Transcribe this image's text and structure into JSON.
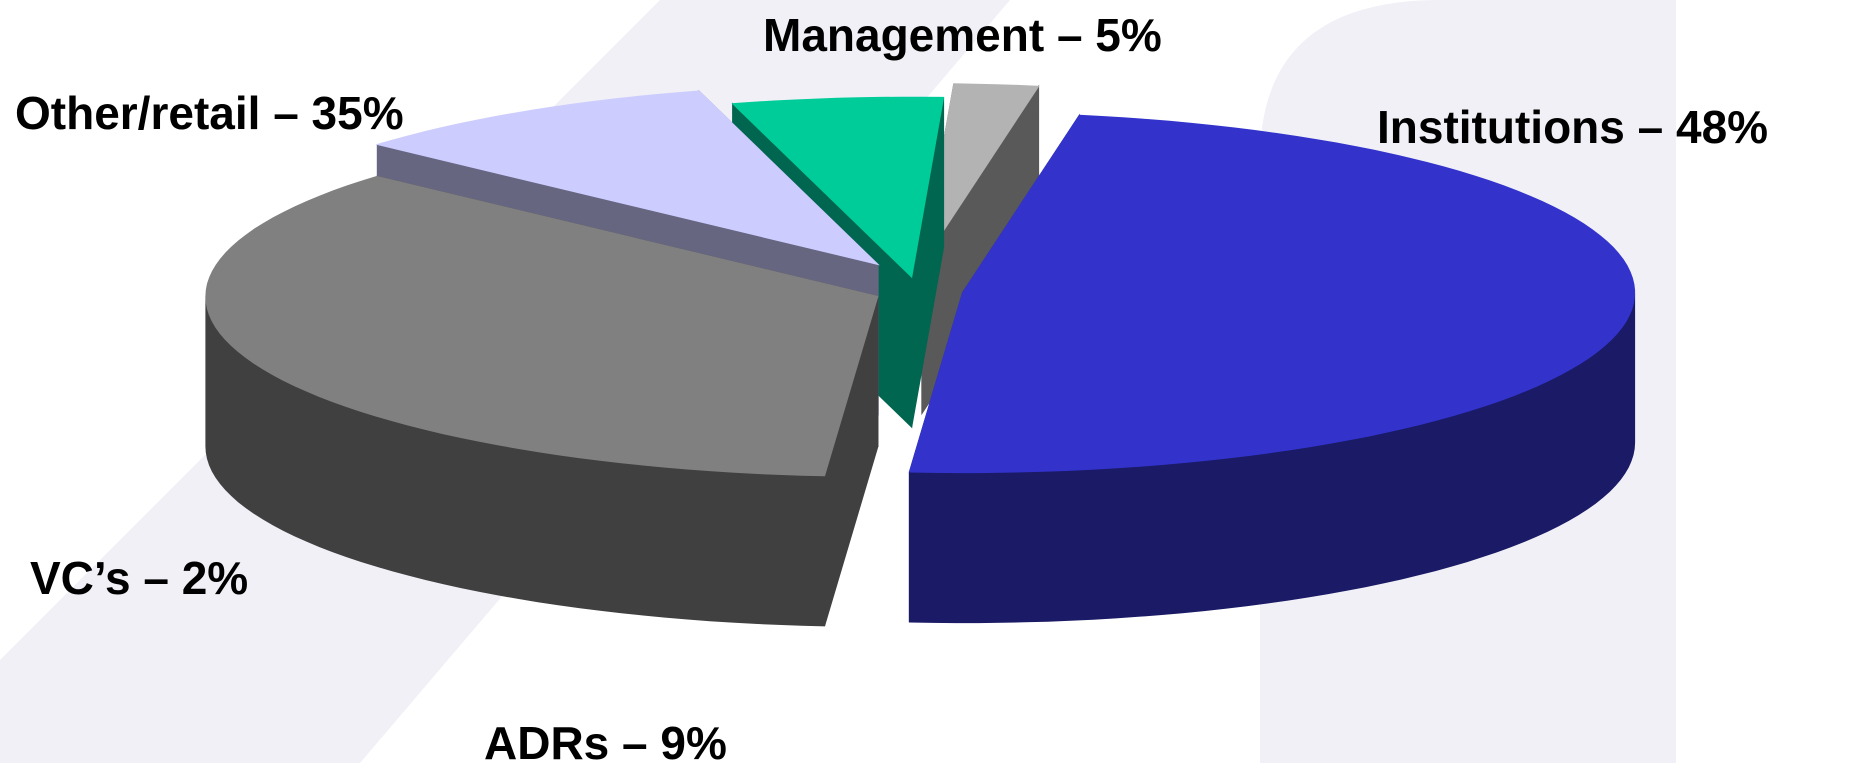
{
  "chart_data": {
    "type": "pie",
    "style": "3d-exploded",
    "title": "",
    "legend": "none",
    "slices": [
      {
        "name": "Institutions",
        "value": 48,
        "label": "Institutions – 48%",
        "top_color": "#3333cc",
        "side_color": "#1a1a66"
      },
      {
        "name": "Other/retail",
        "value": 35,
        "label": "Other/retail – 35%",
        "top_color": "#808080",
        "side_color": "#404040"
      },
      {
        "name": "ADRs",
        "value": 9,
        "label": "ADRs – 9%",
        "top_color": "#ccccff",
        "side_color": "#666680"
      },
      {
        "name": "Management",
        "value": 5,
        "label": "Management – 5%",
        "top_color": "#00cc99",
        "side_color": "#006650"
      },
      {
        "name": "VC’s",
        "value": 2,
        "label": "VC’s – 2%",
        "top_color": "#b3b3b3",
        "side_color": "#595959"
      }
    ]
  },
  "background": {
    "base_color": "#ffffff",
    "shape_color": "#f0f0f6"
  }
}
